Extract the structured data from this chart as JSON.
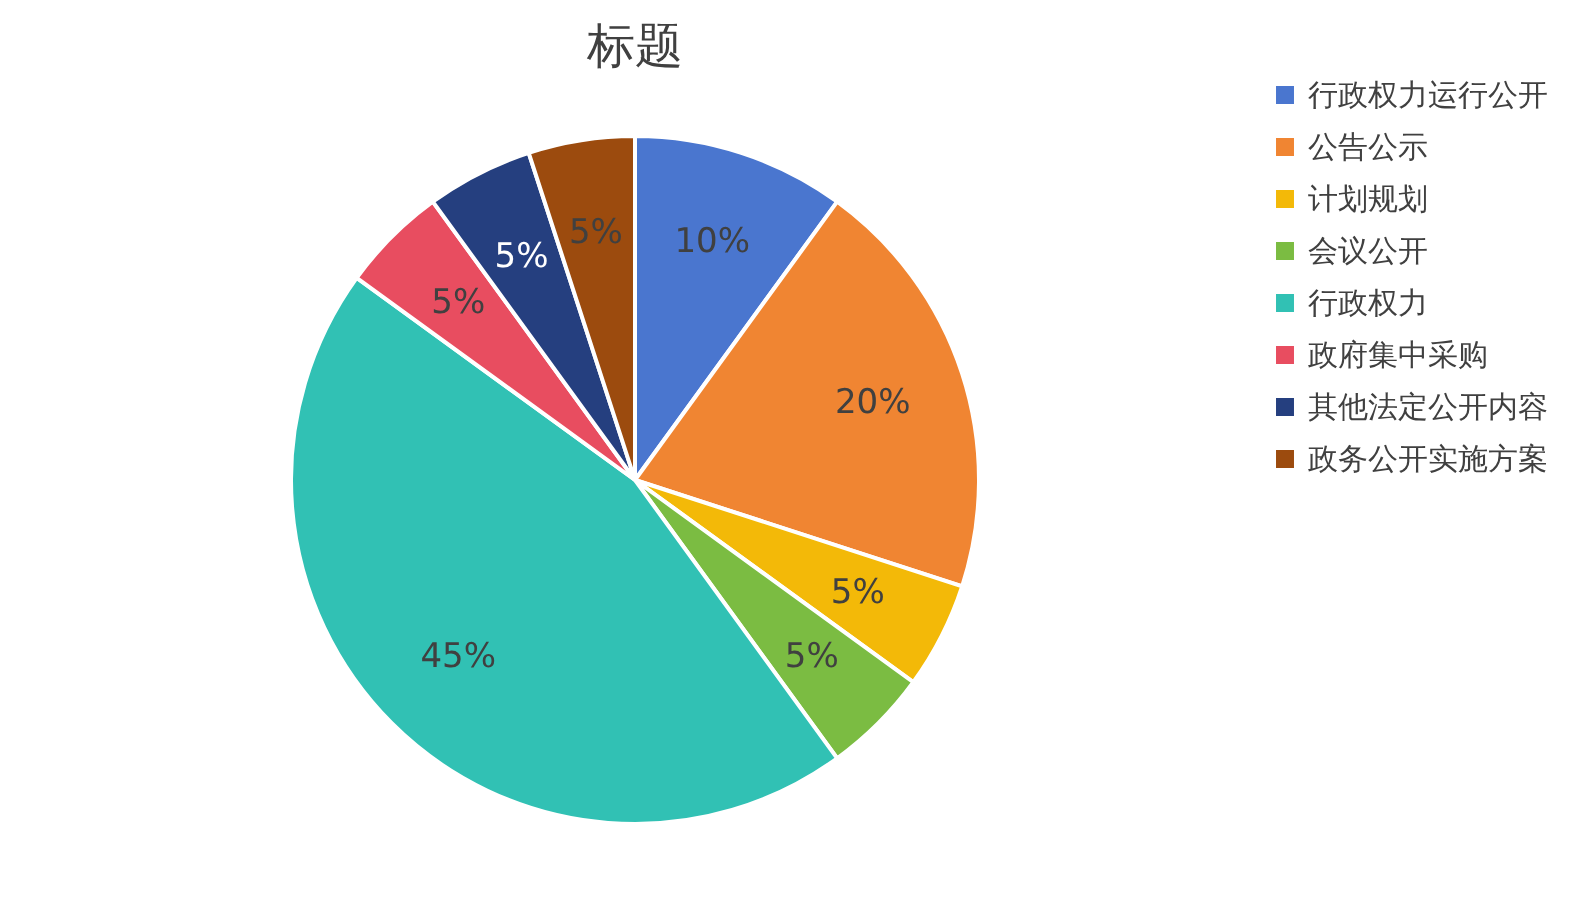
{
  "chart_data": {
    "type": "pie",
    "title": "标题",
    "categories": [
      "行政权力运行公开",
      "公告公示",
      "计划规划",
      "会议公开",
      "行政权力",
      "政府集中采购",
      "其他法定公开内容",
      "政务公开实施方案"
    ],
    "values": [
      10,
      20,
      5,
      5,
      45,
      5,
      5,
      5
    ],
    "colors": [
      "#4a76cf",
      "#f08532",
      "#f3b908",
      "#7bbc42",
      "#31c1b4",
      "#e84d60",
      "#253f7f",
      "#9c4b0e"
    ],
    "value_labels": [
      "10%",
      "20%",
      "5%",
      "5%",
      "45%",
      "5%",
      "5%",
      "5%"
    ],
    "legend": "right"
  }
}
